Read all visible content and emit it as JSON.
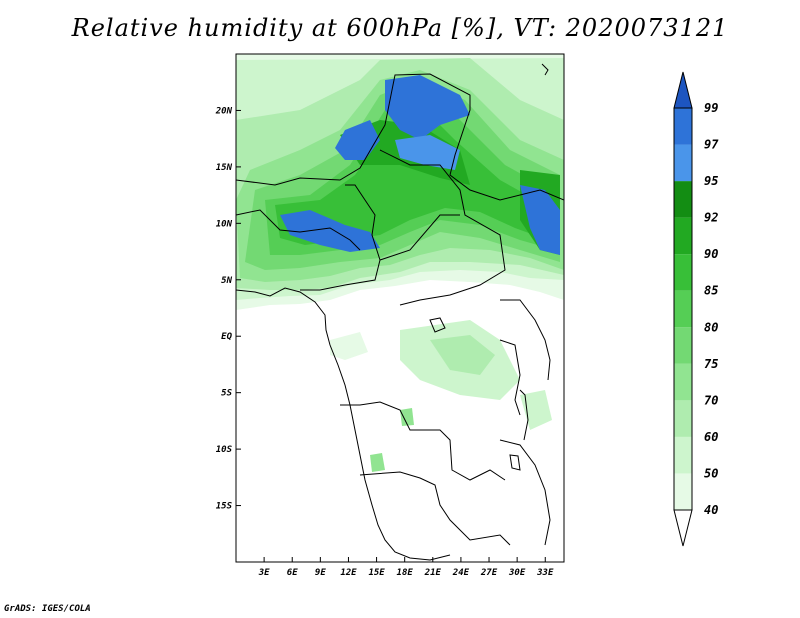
{
  "title": "Relative humidity at 600hPa [%], VT: 2020073121",
  "credit": "GrADS: IGES/COLA",
  "map": {
    "lon_range": [
      0,
      35
    ],
    "lat_range": [
      -20,
      25
    ],
    "lat_labels": [
      "20N",
      "15N",
      "10N",
      "5N",
      "EQ",
      "5S",
      "10S",
      "15S"
    ],
    "lat_values": [
      20,
      15,
      10,
      5,
      0,
      -5,
      -10,
      -15
    ],
    "lon_labels": [
      "3E",
      "6E",
      "9E",
      "12E",
      "15E",
      "18E",
      "21E",
      "24E",
      "27E",
      "30E",
      "33E"
    ],
    "lon_values": [
      3,
      6,
      9,
      12,
      15,
      18,
      21,
      24,
      27,
      30,
      33
    ]
  },
  "colorbar": {
    "labels": [
      "40",
      "50",
      "60",
      "70",
      "75",
      "80",
      "85",
      "90",
      "92",
      "95",
      "97",
      "99"
    ],
    "colors": [
      "#ffffff",
      "#e6fae6",
      "#cdf5cd",
      "#afecaf",
      "#91e491",
      "#73d973",
      "#55ce55",
      "#38bf38",
      "#22a922",
      "#138d13",
      "#4a95ea",
      "#2e73d8",
      "#1d55c0"
    ]
  }
}
